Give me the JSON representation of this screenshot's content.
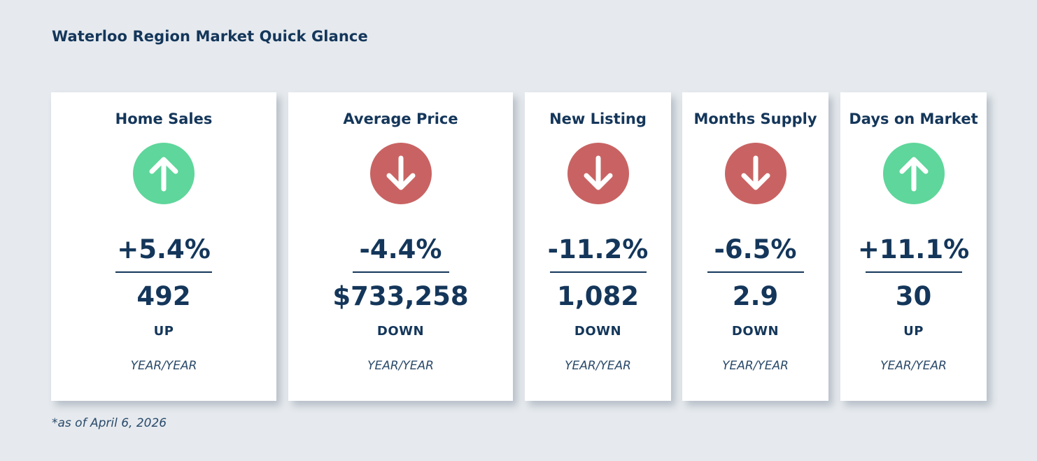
{
  "header": {
    "title": "Waterloo Region Market Quick Glance"
  },
  "colors": {
    "up": "#5fd69b",
    "down": "#c96363",
    "text": "#14365a",
    "background": "#e6eaee"
  },
  "cards": [
    {
      "title": "Home Sales",
      "icon": "arrow-up-icon",
      "trend": "up",
      "percent": "+5.4%",
      "value": "492",
      "direction": "UP",
      "period": "YEAR/YEAR"
    },
    {
      "title": "Average Price",
      "icon": "arrow-down-icon",
      "trend": "down",
      "percent": "-4.4%",
      "value": "$733,258",
      "direction": "DOWN",
      "period": "YEAR/YEAR"
    },
    {
      "title": "New Listing",
      "icon": "arrow-down-icon",
      "trend": "down",
      "percent": "-11.2%",
      "value": "1,082",
      "direction": "DOWN",
      "period": "YEAR/YEAR"
    },
    {
      "title": "Months Supply",
      "icon": "arrow-down-icon",
      "trend": "down",
      "percent": "-6.5%",
      "value": "2.9",
      "direction": "DOWN",
      "period": "YEAR/YEAR"
    },
    {
      "title": "Days on Market",
      "icon": "arrow-up-icon",
      "trend": "up",
      "percent": "+11.1%",
      "value": "30",
      "direction": "UP",
      "period": "YEAR/YEAR"
    }
  ],
  "footer": {
    "note": "*as of April 6, 2026"
  }
}
